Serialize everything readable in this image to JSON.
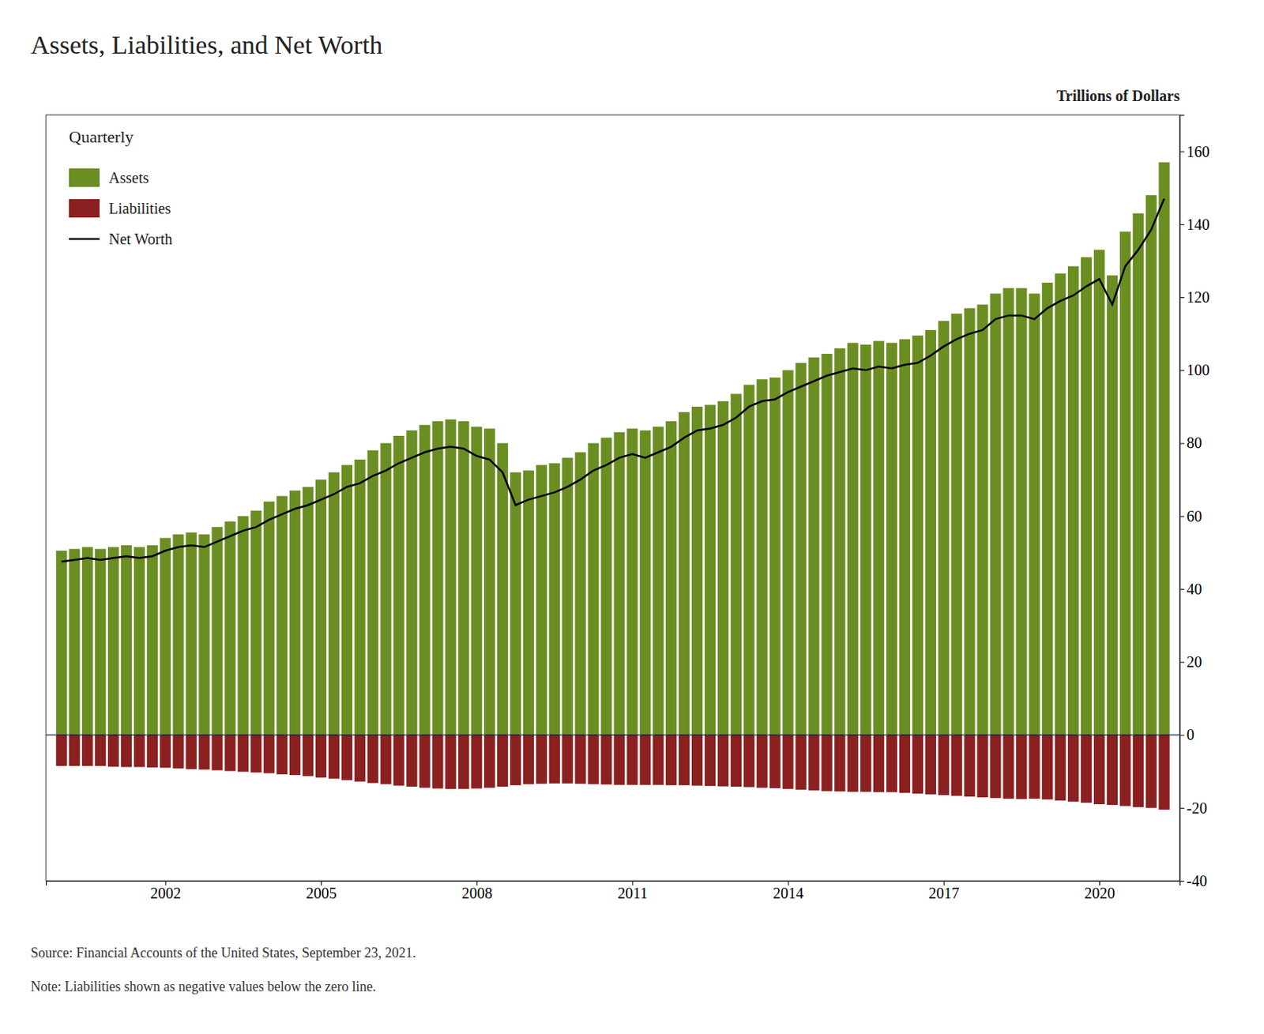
{
  "chart_data": {
    "type": "bar",
    "title": "Assets, Liabilities, and Net Worth",
    "ylabel": "Trillions of Dollars",
    "annotations": [
      "Quarterly",
      "Source: Financial Accounts of the United States, September 23, 2021.",
      "Note: Liabilities shown as negative values below the zero line."
    ],
    "legend": "upper left",
    "grid": false,
    "xlim": [
      1999.7,
      2021.55
    ],
    "xticks": [
      2002,
      2005,
      2008,
      2011,
      2014,
      2017,
      2020
    ],
    "ylim": [
      -40,
      170
    ],
    "yticks": [
      -40,
      -20,
      0,
      20,
      40,
      60,
      80,
      100,
      120,
      140,
      160
    ],
    "x": [
      2000.0,
      2000.25,
      2000.5,
      2000.75,
      2001.0,
      2001.25,
      2001.5,
      2001.75,
      2002.0,
      2002.25,
      2002.5,
      2002.75,
      2003.0,
      2003.25,
      2003.5,
      2003.75,
      2004.0,
      2004.25,
      2004.5,
      2004.75,
      2005.0,
      2005.25,
      2005.5,
      2005.75,
      2006.0,
      2006.25,
      2006.5,
      2006.75,
      2007.0,
      2007.25,
      2007.5,
      2007.75,
      2008.0,
      2008.25,
      2008.5,
      2008.75,
      2009.0,
      2009.25,
      2009.5,
      2009.75,
      2010.0,
      2010.25,
      2010.5,
      2010.75,
      2011.0,
      2011.25,
      2011.5,
      2011.75,
      2012.0,
      2012.25,
      2012.5,
      2012.75,
      2013.0,
      2013.25,
      2013.5,
      2013.75,
      2014.0,
      2014.25,
      2014.5,
      2014.75,
      2015.0,
      2015.25,
      2015.5,
      2015.75,
      2016.0,
      2016.25,
      2016.5,
      2016.75,
      2017.0,
      2017.25,
      2017.5,
      2017.75,
      2018.0,
      2018.25,
      2018.5,
      2018.75,
      2019.0,
      2019.25,
      2019.5,
      2019.75,
      2020.0,
      2020.25,
      2020.5,
      2020.75,
      2021.0,
      2021.25
    ],
    "series": [
      {
        "name": "Assets",
        "type": "bar",
        "color": "#6b8e23",
        "values": [
          50.5,
          51.0,
          51.5,
          51.0,
          51.5,
          52.0,
          51.5,
          52.0,
          54.0,
          55.0,
          55.5,
          55.0,
          57.0,
          58.5,
          60.0,
          61.5,
          64.0,
          65.5,
          67.0,
          68.0,
          70.0,
          72.0,
          74.0,
          75.5,
          78.0,
          80.0,
          82.0,
          83.5,
          85.0,
          86.0,
          86.5,
          86.0,
          84.5,
          84.0,
          80.0,
          72.0,
          72.5,
          74.0,
          74.5,
          76.0,
          77.5,
          80.0,
          81.5,
          83.0,
          84.0,
          83.5,
          84.5,
          86.0,
          88.5,
          90.0,
          90.5,
          91.5,
          93.5,
          96.0,
          97.5,
          98.0,
          100.0,
          102.0,
          103.5,
          104.5,
          106.0,
          107.5,
          107.0,
          108.0,
          107.5,
          108.5,
          109.5,
          111.0,
          113.5,
          115.5,
          117.0,
          118.0,
          121.0,
          122.5,
          122.5,
          121.0,
          124.0,
          126.5,
          128.5,
          131.0,
          133.0,
          126.0,
          138.0,
          143.0,
          148.0,
          157.0
        ]
      },
      {
        "name": "Liabilities",
        "type": "bar",
        "color": "#8b2020",
        "values": [
          -8.5,
          -8.5,
          -8.5,
          -8.5,
          -8.7,
          -8.8,
          -8.8,
          -8.9,
          -9.0,
          -9.2,
          -9.4,
          -9.5,
          -9.7,
          -9.9,
          -10.1,
          -10.3,
          -10.5,
          -10.8,
          -11.0,
          -11.3,
          -11.7,
          -12.0,
          -12.4,
          -12.8,
          -13.2,
          -13.5,
          -13.9,
          -14.2,
          -14.5,
          -14.7,
          -14.8,
          -14.8,
          -14.7,
          -14.5,
          -14.2,
          -13.8,
          -13.5,
          -13.4,
          -13.3,
          -13.3,
          -13.4,
          -13.5,
          -13.6,
          -13.7,
          -13.7,
          -13.7,
          -13.7,
          -13.8,
          -13.8,
          -13.9,
          -14.0,
          -14.1,
          -14.2,
          -14.3,
          -14.5,
          -14.6,
          -14.8,
          -15.0,
          -15.2,
          -15.4,
          -15.5,
          -15.6,
          -15.6,
          -15.7,
          -15.7,
          -15.9,
          -16.1,
          -16.3,
          -16.5,
          -16.7,
          -16.9,
          -17.1,
          -17.3,
          -17.5,
          -17.6,
          -17.5,
          -17.7,
          -18.0,
          -18.3,
          -18.6,
          -19.0,
          -19.2,
          -19.5,
          -19.8,
          -20.0,
          -20.5
        ]
      },
      {
        "name": "Net Worth",
        "type": "line",
        "color": "#000000",
        "values": [
          47.5,
          48.0,
          48.5,
          48.0,
          48.5,
          49.0,
          48.5,
          49.0,
          50.5,
          51.5,
          52.0,
          51.5,
          53.0,
          54.5,
          56.0,
          57.0,
          59.0,
          60.5,
          62.0,
          63.0,
          64.5,
          66.0,
          68.0,
          69.0,
          71.0,
          72.5,
          74.5,
          76.0,
          77.5,
          78.5,
          79.0,
          78.5,
          76.5,
          75.5,
          72.0,
          63.0,
          64.5,
          65.5,
          66.5,
          68.0,
          70.0,
          72.5,
          74.0,
          76.0,
          77.0,
          76.0,
          77.5,
          79.0,
          81.5,
          83.5,
          84.0,
          85.0,
          87.0,
          90.0,
          91.5,
          92.0,
          94.0,
          95.5,
          97.0,
          98.5,
          99.5,
          100.5,
          100.0,
          101.0,
          100.5,
          101.5,
          102.0,
          104.0,
          106.5,
          108.5,
          110.0,
          111.0,
          114.0,
          115.0,
          115.0,
          114.0,
          117.0,
          119.0,
          120.5,
          123.0,
          125.0,
          118.0,
          128.5,
          133.0,
          138.5,
          147.0
        ]
      }
    ]
  }
}
